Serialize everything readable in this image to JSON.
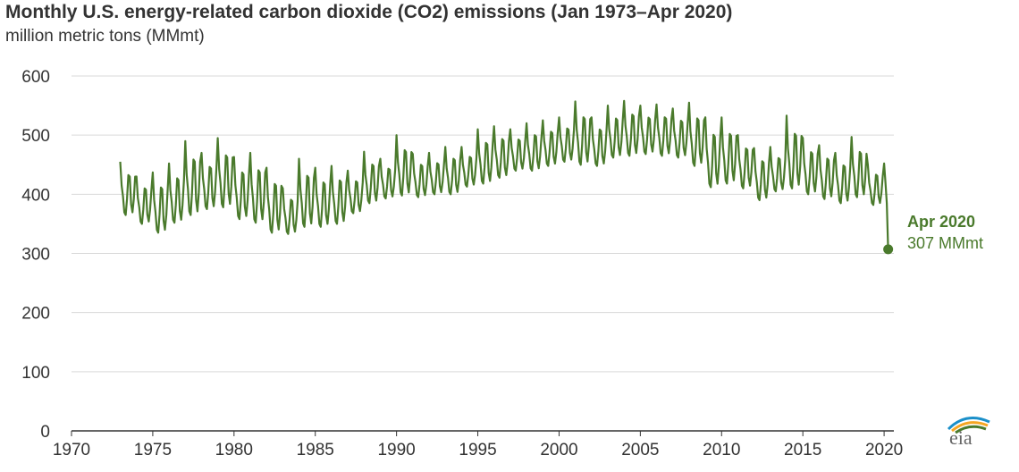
{
  "chart_data": {
    "type": "line",
    "title": "Monthly U.S. energy-related carbon dioxide (CO2) emissions (Jan 1973–Apr 2020)",
    "subtitle": "million metric tons (MMmt)",
    "xlabel": "",
    "ylabel": "",
    "xlim": [
      1970,
      2020.6
    ],
    "ylim": [
      0,
      600
    ],
    "x_ticks": [
      "1970",
      "1975",
      "1980",
      "1985",
      "1990",
      "1995",
      "2000",
      "2005",
      "2010",
      "2015",
      "2020"
    ],
    "y_ticks": [
      "0",
      "100",
      "200",
      "300",
      "400",
      "500",
      "600"
    ],
    "grid": "horizontal",
    "line_color": "#4a7a2c",
    "series": [
      {
        "name": "",
        "frequency": "monthly",
        "start": "1973-01",
        "end": "2020-04",
        "annual_peaks": [
          {
            "year": 1973,
            "value": 455
          },
          {
            "year": 1974,
            "value": 430
          },
          {
            "year": 1975,
            "value": 437
          },
          {
            "year": 1976,
            "value": 452
          },
          {
            "year": 1977,
            "value": 490
          },
          {
            "year": 1978,
            "value": 470
          },
          {
            "year": 1979,
            "value": 495
          },
          {
            "year": 1980,
            "value": 463
          },
          {
            "year": 1981,
            "value": 470
          },
          {
            "year": 1982,
            "value": 445
          },
          {
            "year": 1983,
            "value": 410
          },
          {
            "year": 1984,
            "value": 460
          },
          {
            "year": 1985,
            "value": 445
          },
          {
            "year": 1986,
            "value": 448
          },
          {
            "year": 1987,
            "value": 440
          },
          {
            "year": 1988,
            "value": 472
          },
          {
            "year": 1989,
            "value": 460
          },
          {
            "year": 1990,
            "value": 500
          },
          {
            "year": 1991,
            "value": 468
          },
          {
            "year": 1992,
            "value": 470
          },
          {
            "year": 1993,
            "value": 480
          },
          {
            "year": 1994,
            "value": 480
          },
          {
            "year": 1995,
            "value": 510
          },
          {
            "year": 1996,
            "value": 515
          },
          {
            "year": 1997,
            "value": 510
          },
          {
            "year": 1998,
            "value": 520
          },
          {
            "year": 1999,
            "value": 525
          },
          {
            "year": 2000,
            "value": 530
          },
          {
            "year": 2001,
            "value": 557
          },
          {
            "year": 2002,
            "value": 530
          },
          {
            "year": 2003,
            "value": 550
          },
          {
            "year": 2004,
            "value": 558
          },
          {
            "year": 2005,
            "value": 550
          },
          {
            "year": 2006,
            "value": 552
          },
          {
            "year": 2007,
            "value": 545
          },
          {
            "year": 2008,
            "value": 555
          },
          {
            "year": 2009,
            "value": 530
          },
          {
            "year": 2010,
            "value": 530
          },
          {
            "year": 2011,
            "value": 500
          },
          {
            "year": 2012,
            "value": 478
          },
          {
            "year": 2013,
            "value": 480
          },
          {
            "year": 2014,
            "value": 533
          },
          {
            "year": 2015,
            "value": 495
          },
          {
            "year": 2016,
            "value": 483
          },
          {
            "year": 2017,
            "value": 470
          },
          {
            "year": 2018,
            "value": 497
          },
          {
            "year": 2019,
            "value": 450
          }
        ],
        "annual_troughs": [
          {
            "year": 1973,
            "value": 365
          },
          {
            "year": 1974,
            "value": 350
          },
          {
            "year": 1975,
            "value": 335
          },
          {
            "year": 1976,
            "value": 352
          },
          {
            "year": 1977,
            "value": 365
          },
          {
            "year": 1978,
            "value": 375
          },
          {
            "year": 1979,
            "value": 378
          },
          {
            "year": 1980,
            "value": 358
          },
          {
            "year": 1981,
            "value": 352
          },
          {
            "year": 1982,
            "value": 335
          },
          {
            "year": 1983,
            "value": 333
          },
          {
            "year": 1984,
            "value": 345
          },
          {
            "year": 1985,
            "value": 345
          },
          {
            "year": 1986,
            "value": 350
          },
          {
            "year": 1987,
            "value": 368
          },
          {
            "year": 1988,
            "value": 385
          },
          {
            "year": 1989,
            "value": 393
          },
          {
            "year": 1990,
            "value": 398
          },
          {
            "year": 1991,
            "value": 395
          },
          {
            "year": 1992,
            "value": 400
          },
          {
            "year": 1993,
            "value": 400
          },
          {
            "year": 1994,
            "value": 413
          },
          {
            "year": 1995,
            "value": 418
          },
          {
            "year": 1996,
            "value": 428
          },
          {
            "year": 1997,
            "value": 440
          },
          {
            "year": 1998,
            "value": 440
          },
          {
            "year": 1999,
            "value": 448
          },
          {
            "year": 2000,
            "value": 455
          },
          {
            "year": 2001,
            "value": 450
          },
          {
            "year": 2002,
            "value": 448
          },
          {
            "year": 2003,
            "value": 462
          },
          {
            "year": 2004,
            "value": 465
          },
          {
            "year": 2005,
            "value": 468
          },
          {
            "year": 2006,
            "value": 465
          },
          {
            "year": 2007,
            "value": 462
          },
          {
            "year": 2008,
            "value": 448
          },
          {
            "year": 2009,
            "value": 412
          },
          {
            "year": 2010,
            "value": 418
          },
          {
            "year": 2011,
            "value": 410
          },
          {
            "year": 2012,
            "value": 390
          },
          {
            "year": 2013,
            "value": 405
          },
          {
            "year": 2014,
            "value": 410
          },
          {
            "year": 2015,
            "value": 400
          },
          {
            "year": 2016,
            "value": 392
          },
          {
            "year": 2017,
            "value": 385
          },
          {
            "year": 2018,
            "value": 395
          },
          {
            "year": 2019,
            "value": 382
          }
        ],
        "recent_months": [
          {
            "x": "2020-01",
            "value": 452
          },
          {
            "x": "2020-02",
            "value": 420
          },
          {
            "x": "2020-03",
            "value": 385
          },
          {
            "x": "2020-04",
            "value": 307
          }
        ]
      }
    ],
    "annotation": {
      "label": "Apr 2020",
      "value_text": "307 MMmt",
      "x": "2020-04",
      "y": 307,
      "color": "#4a7a2c"
    }
  },
  "logo": {
    "name": "eia-logo",
    "text": "eia",
    "colors": [
      "#1a8fc9",
      "#f5a623",
      "#4a7a2c"
    ]
  }
}
